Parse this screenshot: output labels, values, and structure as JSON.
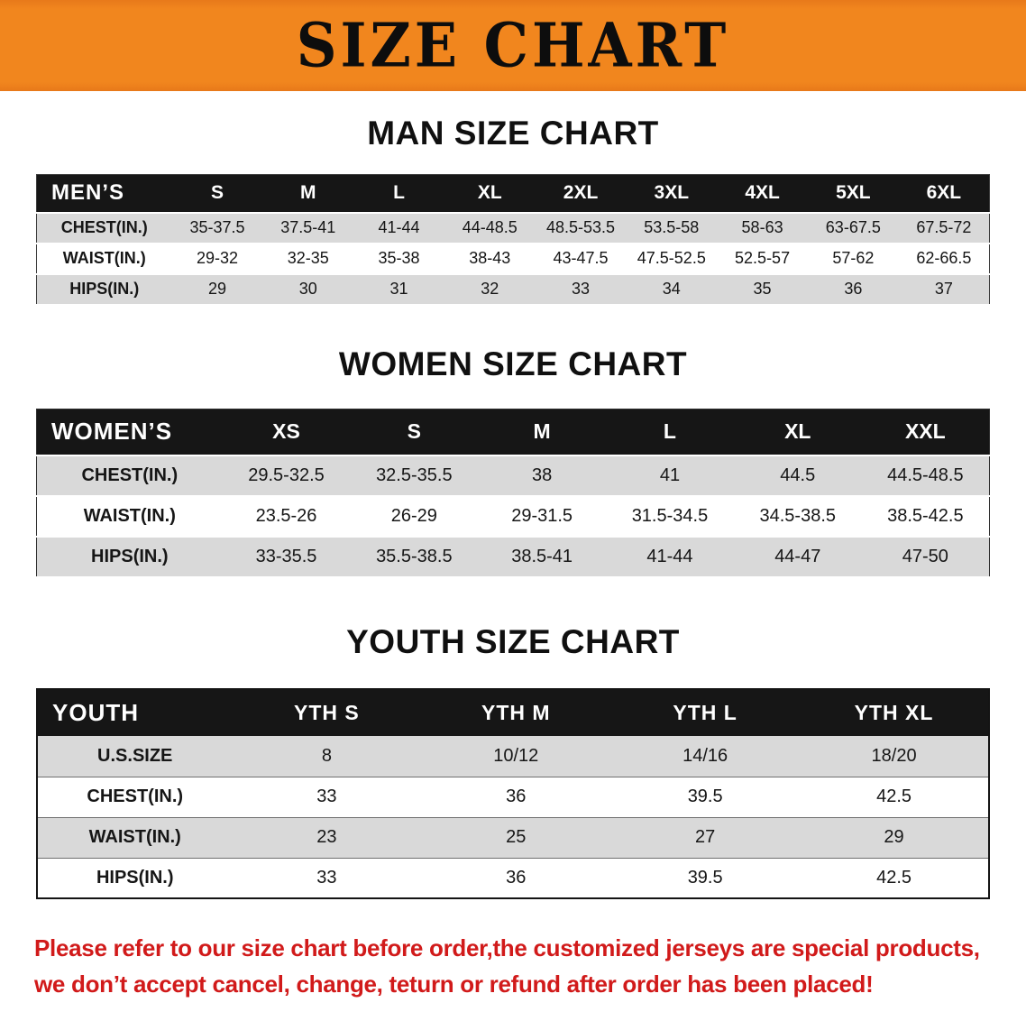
{
  "banner": {
    "title": "SIZE CHART"
  },
  "colors": {
    "banner_bg": "#f1861e",
    "table_header_bg": "#161616",
    "row_stripe": "#d9d9d9",
    "note_text": "#d11a1a"
  },
  "man": {
    "heading": "MAN SIZE CHART",
    "columns": [
      "MEN’S",
      "S",
      "M",
      "L",
      "XL",
      "2XL",
      "3XL",
      "4XL",
      "5XL",
      "6XL"
    ],
    "rows": [
      [
        "CHEST(IN.)",
        "35-37.5",
        "37.5-41",
        "41-44",
        "44-48.5",
        "48.5-53.5",
        "53.5-58",
        "58-63",
        "63-67.5",
        "67.5-72"
      ],
      [
        "WAIST(IN.)",
        "29-32",
        "32-35",
        "35-38",
        "38-43",
        "43-47.5",
        "47.5-52.5",
        "52.5-57",
        "57-62",
        "62-66.5"
      ],
      [
        "HIPS(IN.)",
        "29",
        "30",
        "31",
        "32",
        "33",
        "34",
        "35",
        "36",
        "37"
      ]
    ]
  },
  "women": {
    "heading": "WOMEN SIZE CHART",
    "columns": [
      "WOMEN’S",
      "XS",
      "S",
      "M",
      "L",
      "XL",
      "XXL"
    ],
    "rows": [
      [
        "CHEST(IN.)",
        "29.5-32.5",
        "32.5-35.5",
        "38",
        "41",
        "44.5",
        "44.5-48.5"
      ],
      [
        "WAIST(IN.)",
        "23.5-26",
        "26-29",
        "29-31.5",
        "31.5-34.5",
        "34.5-38.5",
        "38.5-42.5"
      ],
      [
        "HIPS(IN.)",
        "33-35.5",
        "35.5-38.5",
        "38.5-41",
        "41-44",
        "44-47",
        "47-50"
      ]
    ]
  },
  "youth": {
    "heading": "YOUTH SIZE CHART",
    "columns": [
      "YOUTH",
      "YTH S",
      "YTH M",
      "YTH L",
      "YTH XL"
    ],
    "rows": [
      [
        "U.S.SIZE",
        "8",
        "10/12",
        "14/16",
        "18/20"
      ],
      [
        "CHEST(IN.)",
        "33",
        "36",
        "39.5",
        "42.5"
      ],
      [
        "WAIST(IN.)",
        "23",
        "25",
        "27",
        "29"
      ],
      [
        "HIPS(IN.)",
        "33",
        "36",
        "39.5",
        "42.5"
      ]
    ]
  },
  "note": {
    "line1": "Please refer to our size chart before order,the customized jerseys are special products,",
    "line2": "we don’t accept cancel, change, teturn or refund after order has been placed!"
  }
}
